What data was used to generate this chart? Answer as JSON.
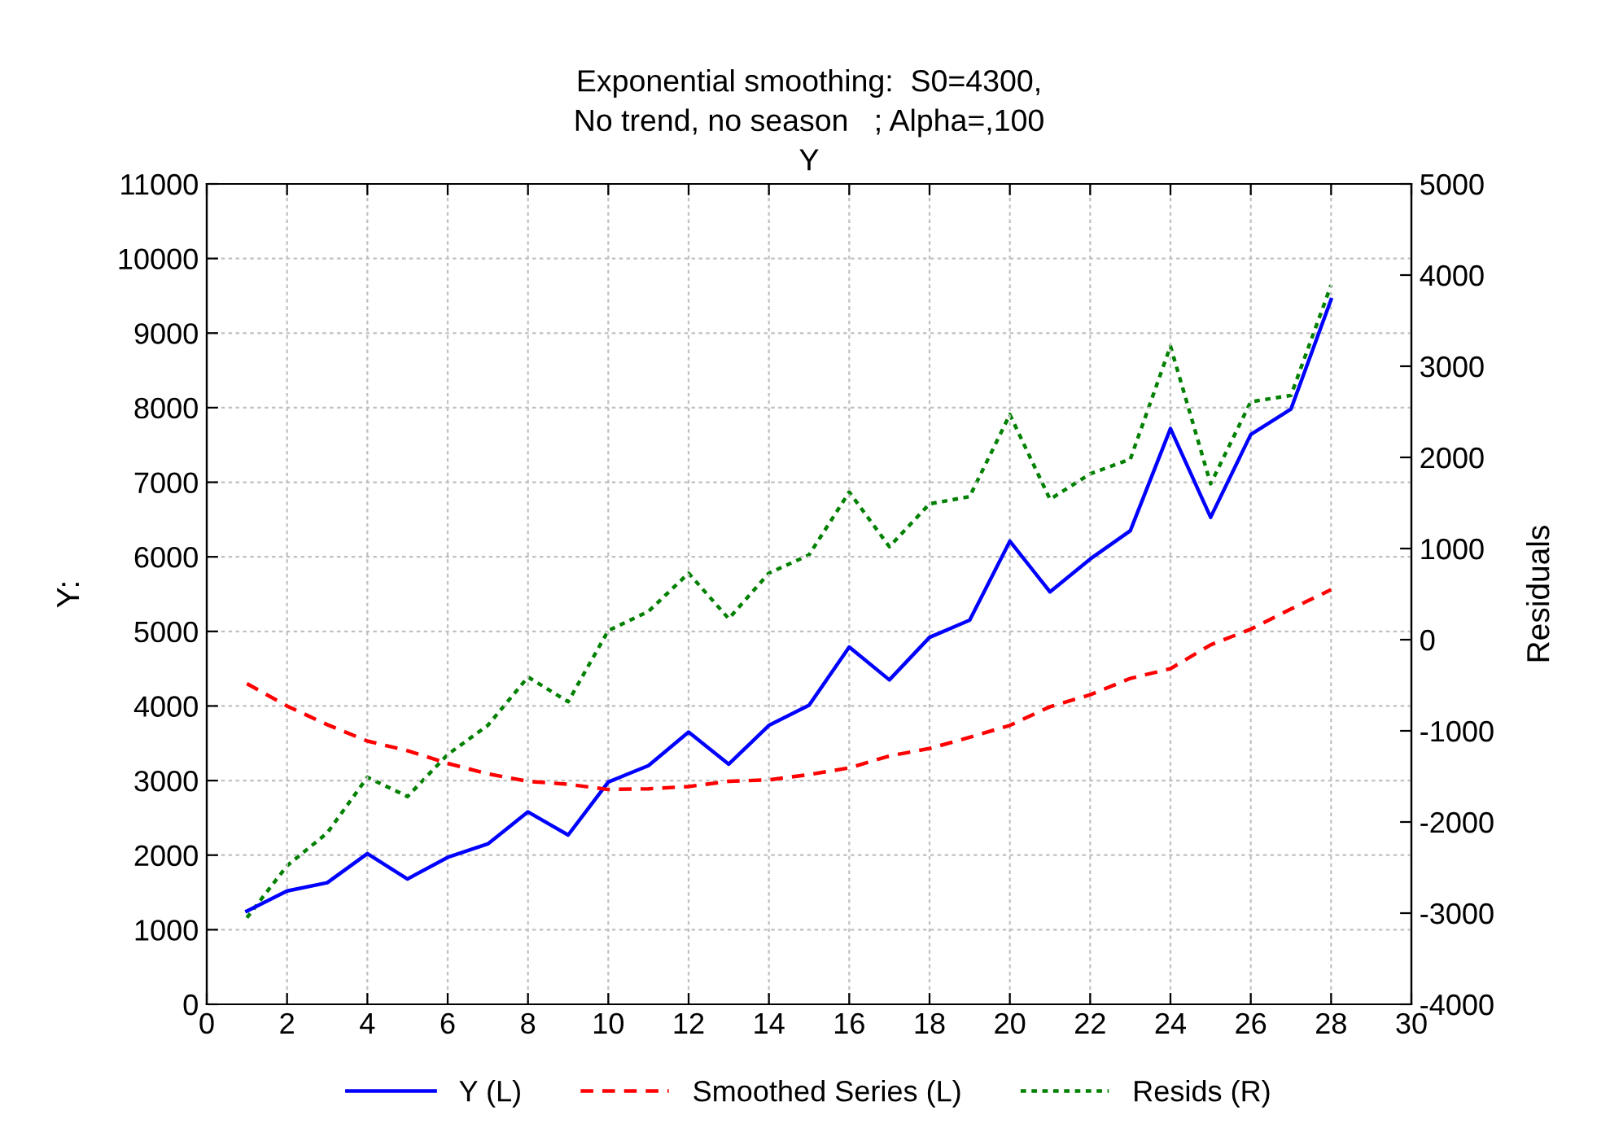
{
  "chart_data": {
    "type": "line",
    "title": "Exponential smoothing:  S0=4300,\nNo trend, no season   ; Alpha=,100\nY",
    "ylabel": "Y:",
    "y2label": "Residuals",
    "x": [
      1,
      2,
      3,
      4,
      5,
      6,
      7,
      8,
      9,
      10,
      11,
      12,
      13,
      14,
      15,
      16,
      17,
      18,
      19,
      20,
      21,
      22,
      23,
      24,
      25,
      26,
      27,
      28
    ],
    "series": [
      {
        "name": "Y (L)",
        "color": "#0000ff",
        "line_style": "solid",
        "values": [
          1250,
          1520,
          1630,
          2020,
          1680,
          1970,
          2150,
          2580,
          2270,
          2980,
          3200,
          3650,
          3220,
          3740,
          4010,
          4790,
          4350,
          4920,
          5150,
          6210,
          5530,
          5970,
          6350,
          7720,
          6530,
          7640,
          7980,
          9450
        ]
      },
      {
        "name": "Smoothed Series (L)",
        "color": "#ff0000",
        "line_style": "dashed",
        "values": [
          4300,
          4000,
          3750,
          3530,
          3400,
          3230,
          3090,
          2990,
          2950,
          2880,
          2890,
          2920,
          2990,
          3010,
          3080,
          3170,
          3330,
          3430,
          3580,
          3740,
          3990,
          4150,
          4370,
          4500,
          4820,
          5030,
          5300,
          5560
        ]
      },
      {
        "name": "Resids (R)",
        "color": "#008000",
        "line_style": "dotted",
        "axis": "y2",
        "values": [
          -3050,
          -2480,
          -2120,
          -1510,
          -1720,
          -1260,
          -940,
          -410,
          -680,
          100,
          310,
          730,
          230,
          730,
          930,
          1620,
          1020,
          1490,
          1570,
          2470,
          1540,
          1820,
          1980,
          3220,
          1710,
          2610,
          2680,
          3890
        ]
      }
    ],
    "xlim": [
      0,
      30
    ],
    "xticks": [
      0,
      2,
      4,
      6,
      8,
      10,
      12,
      14,
      16,
      18,
      20,
      22,
      24,
      26,
      28,
      30
    ],
    "ylim": [
      0,
      11000
    ],
    "yticks": [
      0,
      1000,
      2000,
      3000,
      4000,
      5000,
      6000,
      7000,
      8000,
      9000,
      10000,
      11000
    ],
    "y2lim": [
      -4000,
      5000
    ],
    "y2ticks": [
      -4000,
      -3000,
      -2000,
      -1000,
      0,
      1000,
      2000,
      3000,
      4000,
      5000
    ],
    "grid": true,
    "legend": "bottom",
    "marker": "none"
  }
}
